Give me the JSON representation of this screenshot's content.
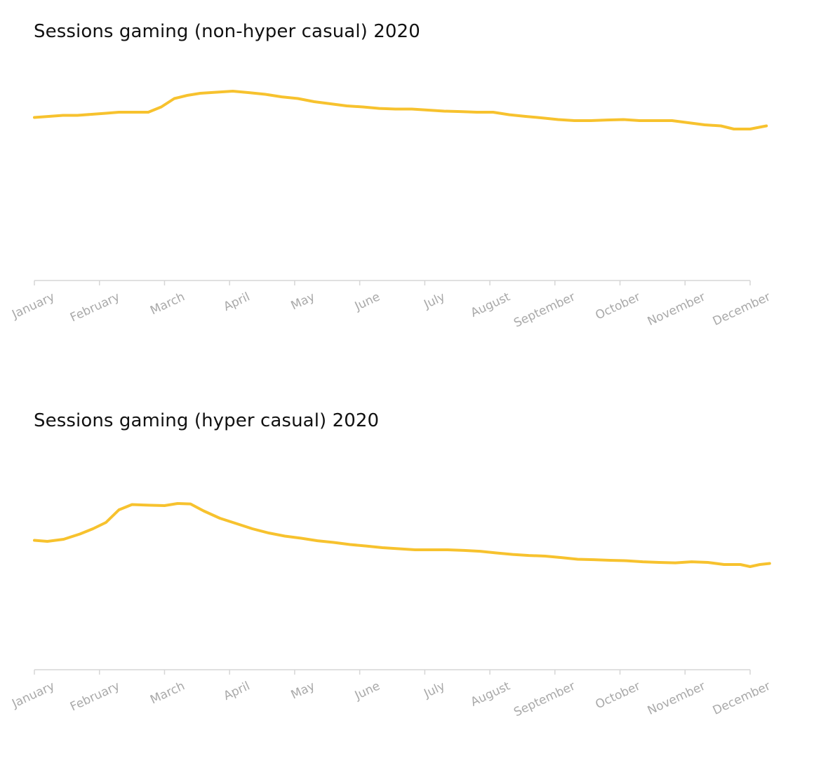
{
  "chart_data": [
    {
      "type": "line",
      "title": "Sessions gaming (non-hyper casual) 2020",
      "xlabel": "",
      "ylabel": "",
      "x_tick_labels": [
        "January",
        "February",
        "March",
        "April",
        "May",
        "June",
        "July",
        "August",
        "September",
        "October",
        "November",
        "December"
      ],
      "grid": false,
      "y_axis_visible": false,
      "ylim": [
        0,
        100
      ],
      "series": [
        {
          "color": "#F7C22E",
          "points": [
            [
              0.0,
              77.5
            ],
            [
              0.22,
              78.0
            ],
            [
              0.44,
              78.5
            ],
            [
              0.66,
              78.5
            ],
            [
              0.88,
              79.0
            ],
            [
              1.1,
              79.5
            ],
            [
              1.3,
              80.0
            ],
            [
              1.5,
              80.0
            ],
            [
              1.75,
              80.0
            ],
            [
              1.95,
              82.5
            ],
            [
              2.15,
              86.5
            ],
            [
              2.35,
              88.0
            ],
            [
              2.55,
              89.0
            ],
            [
              2.8,
              89.5
            ],
            [
              3.05,
              90.0
            ],
            [
              3.3,
              89.3
            ],
            [
              3.55,
              88.5
            ],
            [
              3.8,
              87.3
            ],
            [
              4.05,
              86.5
            ],
            [
              4.3,
              85.0
            ],
            [
              4.55,
              84.0
            ],
            [
              4.8,
              83.0
            ],
            [
              5.05,
              82.5
            ],
            [
              5.3,
              81.8
            ],
            [
              5.55,
              81.5
            ],
            [
              5.8,
              81.5
            ],
            [
              6.05,
              81.0
            ],
            [
              6.3,
              80.5
            ],
            [
              6.55,
              80.3
            ],
            [
              6.8,
              80.0
            ],
            [
              7.05,
              80.0
            ],
            [
              7.3,
              78.8
            ],
            [
              7.55,
              78.0
            ],
            [
              7.8,
              77.3
            ],
            [
              8.05,
              76.5
            ],
            [
              8.3,
              76.0
            ],
            [
              8.55,
              76.0
            ],
            [
              8.8,
              76.3
            ],
            [
              9.05,
              76.5
            ],
            [
              9.3,
              76.0
            ],
            [
              9.55,
              76.0
            ],
            [
              9.8,
              76.0
            ],
            [
              10.05,
              75.0
            ],
            [
              10.3,
              74.0
            ],
            [
              10.55,
              73.5
            ],
            [
              10.75,
              72.0
            ],
            [
              11.0,
              72.0
            ],
            [
              11.25,
              73.5
            ]
          ]
        }
      ]
    },
    {
      "type": "line",
      "title": "Sessions gaming (hyper casual) 2020",
      "xlabel": "",
      "ylabel": "",
      "x_tick_labels": [
        "January",
        "February",
        "March",
        "April",
        "May",
        "June",
        "July",
        "August",
        "September",
        "October",
        "November",
        "December"
      ],
      "grid": false,
      "y_axis_visible": false,
      "ylim": [
        0,
        100
      ],
      "series": [
        {
          "color": "#F7C22E",
          "points": [
            [
              0.0,
              61.5
            ],
            [
              0.2,
              61.0
            ],
            [
              0.45,
              62.0
            ],
            [
              0.7,
              64.5
            ],
            [
              0.9,
              67.0
            ],
            [
              1.1,
              70.0
            ],
            [
              1.3,
              76.0
            ],
            [
              1.5,
              78.5
            ],
            [
              1.75,
              78.2
            ],
            [
              2.0,
              78.0
            ],
            [
              2.2,
              79.0
            ],
            [
              2.4,
              78.8
            ],
            [
              2.6,
              75.5
            ],
            [
              2.85,
              72.0
            ],
            [
              3.1,
              69.5
            ],
            [
              3.35,
              67.0
            ],
            [
              3.6,
              65.0
            ],
            [
              3.85,
              63.5
            ],
            [
              4.1,
              62.5
            ],
            [
              4.35,
              61.3
            ],
            [
              4.6,
              60.5
            ],
            [
              4.85,
              59.5
            ],
            [
              5.1,
              58.8
            ],
            [
              5.35,
              58.0
            ],
            [
              5.6,
              57.5
            ],
            [
              5.85,
              57.0
            ],
            [
              6.1,
              57.0
            ],
            [
              6.35,
              57.0
            ],
            [
              6.6,
              56.7
            ],
            [
              6.85,
              56.3
            ],
            [
              7.1,
              55.5
            ],
            [
              7.35,
              54.8
            ],
            [
              7.6,
              54.3
            ],
            [
              7.85,
              54.0
            ],
            [
              8.1,
              53.3
            ],
            [
              8.35,
              52.5
            ],
            [
              8.6,
              52.3
            ],
            [
              8.85,
              52.0
            ],
            [
              9.1,
              51.8
            ],
            [
              9.35,
              51.3
            ],
            [
              9.6,
              51.0
            ],
            [
              9.85,
              50.8
            ],
            [
              10.1,
              51.3
            ],
            [
              10.35,
              51.0
            ],
            [
              10.6,
              50.0
            ],
            [
              10.85,
              50.0
            ],
            [
              11.0,
              49.0
            ],
            [
              11.15,
              50.0
            ],
            [
              11.3,
              50.5
            ]
          ]
        }
      ]
    }
  ]
}
